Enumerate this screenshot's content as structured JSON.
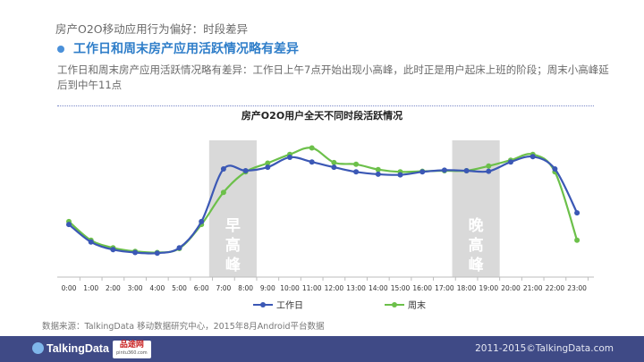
{
  "header": {
    "breadcrumb": "房产O2O移动应用行为偏好：时段差异",
    "headline": "工作日和周末房产应用活跃情况略有差异",
    "description": "工作日和周末房产应用活跃情况略有差异：工作日上午7点开始出现小高峰，此时正是用户起床上班的阶段；周末小高峰延后到中午11点"
  },
  "chart_data": {
    "type": "line",
    "title": "房产O2O用户全天不同时段活跃情况",
    "categories": [
      "0:00",
      "1:00",
      "2:00",
      "3:00",
      "4:00",
      "5:00",
      "6:00",
      "7:00",
      "8:00",
      "9:00",
      "10:00",
      "11:00",
      "12:00",
      "13:00",
      "14:00",
      "15:00",
      "16:00",
      "17:00",
      "18:00",
      "19:00",
      "20:00",
      "21:00",
      "22:00",
      "23:00"
    ],
    "series": [
      {
        "name": "工作日",
        "color": "#3b58b5",
        "values": [
          0.9,
          0.6,
          0.47,
          0.42,
          0.41,
          0.5,
          0.95,
          1.85,
          1.82,
          1.88,
          2.05,
          1.97,
          1.88,
          1.8,
          1.76,
          1.75,
          1.8,
          1.83,
          1.82,
          1.81,
          1.97,
          2.06,
          1.85,
          1.1
        ]
      },
      {
        "name": "周末",
        "color": "#6cc04a",
        "values": [
          0.95,
          0.63,
          0.5,
          0.44,
          0.42,
          0.49,
          0.9,
          1.45,
          1.8,
          1.95,
          2.1,
          2.21,
          1.96,
          1.93,
          1.84,
          1.8,
          1.81,
          1.82,
          1.82,
          1.9,
          2.0,
          2.1,
          1.8,
          0.63
        ]
      }
    ],
    "highlight_bands": [
      {
        "label": "早高峰",
        "from": "6:00",
        "to": "8:00"
      },
      {
        "label": "晚高峰",
        "from": "17:00",
        "to": "19:00"
      }
    ],
    "ylim": [
      0,
      2.6
    ],
    "grid": false,
    "legend": "bottom"
  },
  "footer": {
    "source": "数据来源：TalkingData 移动数据研究中心，2015年8月Android平台数据",
    "logo_text": "TalkingData",
    "partner_name": "品途网",
    "partner_sub": "pintu360.com",
    "copyright": "2011-2015©TalkingData.com"
  }
}
